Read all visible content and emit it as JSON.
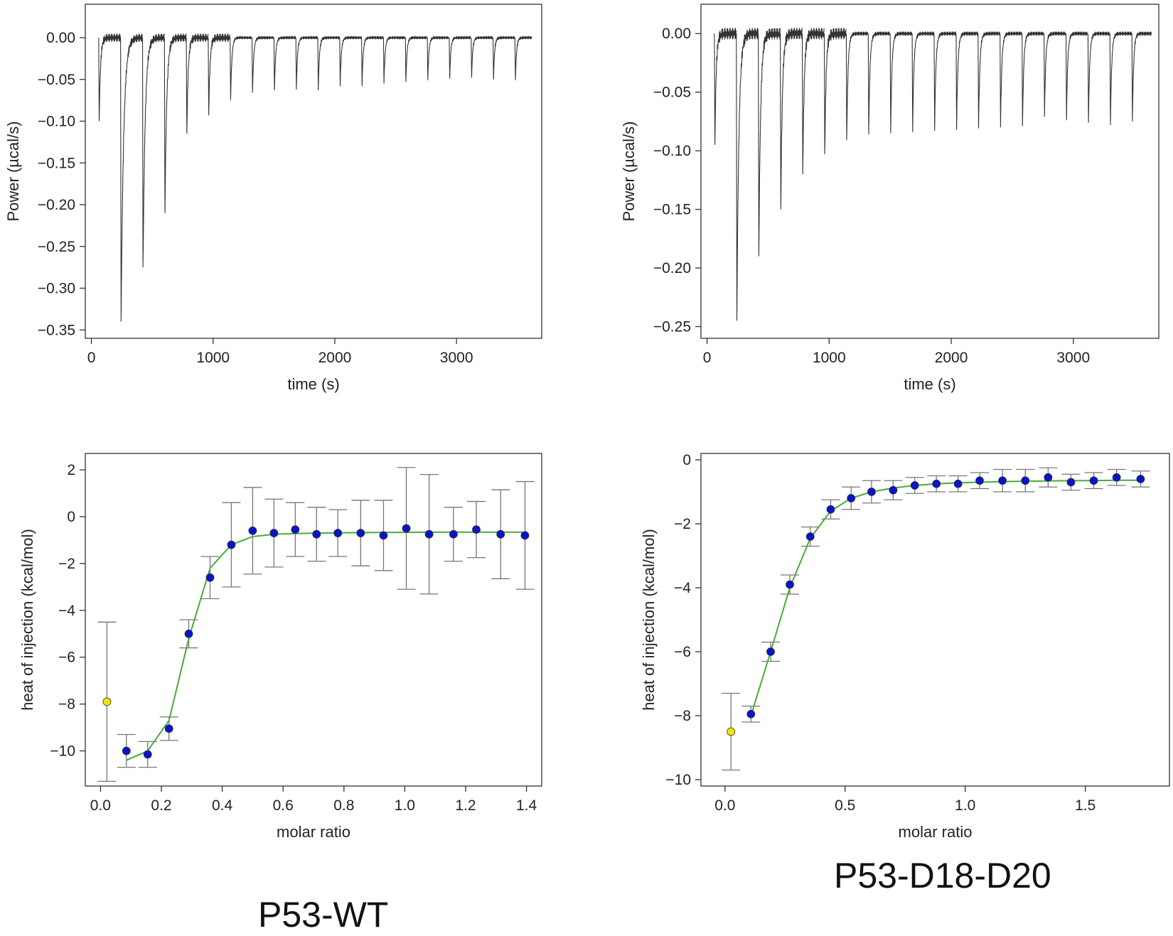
{
  "figure": {
    "captions": {
      "wt": "P53-WT",
      "mutant": "P53-D18-D20"
    },
    "colors": {
      "trace": "#333333",
      "fit_line": "#4aaa3a",
      "point_fill": "#0a14c8",
      "excluded_point_fill": "#f4e400",
      "error_bar": "#777777",
      "axis": "#333333"
    }
  },
  "chart_data": [
    {
      "id": "wt_thermogram",
      "type": "line",
      "title": "",
      "xlabel": "time (s)",
      "ylabel": "Power (µcal/s)",
      "xlim": [
        -50,
        3700
      ],
      "ylim": [
        -0.36,
        0.04
      ],
      "xticks": [
        0,
        1000,
        2000,
        3000
      ],
      "yticks": [
        0.0,
        -0.05,
        -0.1,
        -0.15,
        -0.2,
        -0.25,
        -0.3,
        -0.35
      ],
      "ytick_decimals": 2,
      "injection_interval_s": 180,
      "injection_times": [
        60,
        240,
        420,
        600,
        780,
        960,
        1140,
        1320,
        1500,
        1680,
        1860,
        2040,
        2220,
        2400,
        2580,
        2760,
        2940,
        3120,
        3300,
        3480
      ],
      "peak_values": [
        -0.1,
        -0.34,
        -0.275,
        -0.21,
        -0.115,
        -0.093,
        -0.075,
        -0.066,
        -0.063,
        -0.062,
        -0.063,
        -0.058,
        -0.058,
        -0.055,
        -0.053,
        -0.051,
        -0.049,
        -0.048,
        -0.05,
        -0.051
      ],
      "baseline": 0.0,
      "x_end": 3620,
      "grid": false
    },
    {
      "id": "mut_thermogram",
      "type": "line",
      "title": "",
      "xlabel": "time (s)",
      "ylabel": "Power (µcal/s)",
      "xlim": [
        -50,
        3700
      ],
      "ylim": [
        -0.26,
        0.025
      ],
      "xticks": [
        0,
        1000,
        2000,
        3000
      ],
      "yticks": [
        0.0,
        -0.05,
        -0.1,
        -0.15,
        -0.2,
        -0.25
      ],
      "ytick_decimals": 2,
      "injection_interval_s": 180,
      "injection_times": [
        60,
        240,
        420,
        600,
        780,
        960,
        1140,
        1320,
        1500,
        1680,
        1860,
        2040,
        2220,
        2400,
        2580,
        2760,
        2940,
        3120,
        3300,
        3480
      ],
      "peak_values": [
        -0.095,
        -0.245,
        -0.19,
        -0.15,
        -0.12,
        -0.103,
        -0.091,
        -0.086,
        -0.085,
        -0.084,
        -0.083,
        -0.082,
        -0.081,
        -0.08,
        -0.079,
        -0.071,
        -0.074,
        -0.076,
        -0.078,
        -0.075
      ],
      "baseline": 0.0,
      "x_end": 3640,
      "grid": false
    },
    {
      "id": "wt_isotherm",
      "type": "scatter",
      "title": "",
      "xlabel": "molar ratio",
      "ylabel": "heat of injection (kcal/mol)",
      "xlim": [
        -0.05,
        1.45
      ],
      "ylim": [
        -11.5,
        2.7
      ],
      "xticks": [
        0.0,
        0.2,
        0.4,
        0.6,
        0.8,
        1.0,
        1.2,
        1.4
      ],
      "xtick_decimals": 1,
      "yticks": [
        2,
        0,
        -2,
        -4,
        -6,
        -8,
        -10
      ],
      "ytick_decimals": 0,
      "points": [
        {
          "x": 0.021,
          "y": -7.9,
          "err": 3.4,
          "excluded": true
        },
        {
          "x": 0.085,
          "y": -10.0,
          "err": 0.7
        },
        {
          "x": 0.155,
          "y": -10.15,
          "err": 0.55
        },
        {
          "x": 0.225,
          "y": -9.05,
          "err": 0.5
        },
        {
          "x": 0.29,
          "y": -5.0,
          "err": 0.6
        },
        {
          "x": 0.36,
          "y": -2.6,
          "err": 0.9
        },
        {
          "x": 0.43,
          "y": -1.2,
          "err": 1.8
        },
        {
          "x": 0.5,
          "y": -0.6,
          "err": 1.85
        },
        {
          "x": 0.57,
          "y": -0.7,
          "err": 1.45
        },
        {
          "x": 0.64,
          "y": -0.55,
          "err": 1.15
        },
        {
          "x": 0.71,
          "y": -0.75,
          "err": 1.15
        },
        {
          "x": 0.78,
          "y": -0.7,
          "err": 1.0
        },
        {
          "x": 0.855,
          "y": -0.7,
          "err": 1.4
        },
        {
          "x": 0.93,
          "y": -0.8,
          "err": 1.5
        },
        {
          "x": 1.005,
          "y": -0.5,
          "err": 2.6
        },
        {
          "x": 1.08,
          "y": -0.75,
          "err": 2.55
        },
        {
          "x": 1.16,
          "y": -0.75,
          "err": 1.15
        },
        {
          "x": 1.235,
          "y": -0.55,
          "err": 1.2
        },
        {
          "x": 1.315,
          "y": -0.75,
          "err": 1.9
        },
        {
          "x": 1.395,
          "y": -0.8,
          "err": 2.3
        }
      ],
      "fit": {
        "x": [
          0.085,
          0.155,
          0.225,
          0.29,
          0.36,
          0.43,
          0.5,
          0.57,
          0.64,
          0.71,
          0.78,
          0.855,
          0.93,
          1.005,
          1.08,
          1.16,
          1.235,
          1.315,
          1.395
        ],
        "y": [
          -10.4,
          -10.0,
          -8.7,
          -5.2,
          -2.2,
          -1.2,
          -0.85,
          -0.75,
          -0.72,
          -0.7,
          -0.69,
          -0.68,
          -0.67,
          -0.67,
          -0.66,
          -0.66,
          -0.66,
          -0.66,
          -0.66
        ]
      },
      "grid": false
    },
    {
      "id": "mut_isotherm",
      "type": "scatter",
      "title": "",
      "xlabel": "molar ratio",
      "ylabel": "heat of injection (kcal/mol)",
      "xlim": [
        -0.1,
        1.85
      ],
      "ylim": [
        -10.2,
        0.2
      ],
      "xticks": [
        0.0,
        0.5,
        1.0,
        1.5
      ],
      "xtick_decimals": 1,
      "yticks": [
        0,
        -2,
        -4,
        -6,
        -8,
        -10
      ],
      "ytick_decimals": 0,
      "points": [
        {
          "x": 0.025,
          "y": -8.5,
          "err": 1.2,
          "excluded": true
        },
        {
          "x": 0.108,
          "y": -7.95,
          "err": 0.25
        },
        {
          "x": 0.19,
          "y": -6.0,
          "err": 0.3
        },
        {
          "x": 0.27,
          "y": -3.9,
          "err": 0.3
        },
        {
          "x": 0.355,
          "y": -2.4,
          "err": 0.3
        },
        {
          "x": 0.44,
          "y": -1.55,
          "err": 0.3
        },
        {
          "x": 0.525,
          "y": -1.2,
          "err": 0.35
        },
        {
          "x": 0.61,
          "y": -1.0,
          "err": 0.35
        },
        {
          "x": 0.7,
          "y": -0.95,
          "err": 0.3
        },
        {
          "x": 0.79,
          "y": -0.8,
          "err": 0.25
        },
        {
          "x": 0.88,
          "y": -0.75,
          "err": 0.25
        },
        {
          "x": 0.97,
          "y": -0.75,
          "err": 0.25
        },
        {
          "x": 1.06,
          "y": -0.65,
          "err": 0.25
        },
        {
          "x": 1.155,
          "y": -0.65,
          "err": 0.35
        },
        {
          "x": 1.25,
          "y": -0.65,
          "err": 0.35
        },
        {
          "x": 1.345,
          "y": -0.55,
          "err": 0.3
        },
        {
          "x": 1.44,
          "y": -0.7,
          "err": 0.25
        },
        {
          "x": 1.535,
          "y": -0.65,
          "err": 0.25
        },
        {
          "x": 1.63,
          "y": -0.55,
          "err": 0.25
        },
        {
          "x": 1.73,
          "y": -0.6,
          "err": 0.25
        }
      ],
      "fit": {
        "x": [
          0.108,
          0.19,
          0.27,
          0.355,
          0.44,
          0.525,
          0.61,
          0.7,
          0.79,
          0.88,
          0.97,
          1.06,
          1.155,
          1.25,
          1.345,
          1.44,
          1.535,
          1.63,
          1.73
        ],
        "y": [
          -8.0,
          -6.0,
          -4.0,
          -2.45,
          -1.6,
          -1.2,
          -1.0,
          -0.88,
          -0.8,
          -0.75,
          -0.72,
          -0.7,
          -0.68,
          -0.67,
          -0.66,
          -0.65,
          -0.65,
          -0.64,
          -0.64
        ]
      },
      "grid": false
    }
  ]
}
